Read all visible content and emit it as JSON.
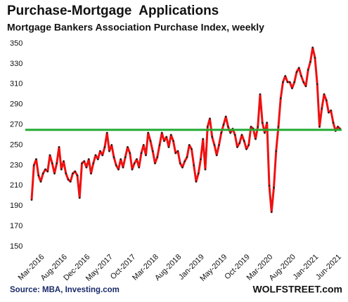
{
  "chart_data": {
    "type": "line",
    "title": "Purchase-Mortgage  Applications",
    "subtitle": "Mortgage Bankers Association Purchase Index, weekly",
    "source": "Source: MBA, Investing.com",
    "brand": "WOLFSTREET.com",
    "categories": [
      null,
      null,
      null,
      null,
      null,
      "Mar-2016",
      null,
      null,
      null,
      null,
      null,
      null,
      null,
      null,
      null,
      "Aug-2016",
      null,
      null,
      null,
      null,
      null,
      null,
      null,
      null,
      null,
      "Dec-2016",
      null,
      null,
      null,
      null,
      null,
      null,
      null,
      null,
      null,
      "May-2017",
      null,
      null,
      null,
      null,
      null,
      null,
      null,
      null,
      null,
      "Oct-2017",
      null,
      null,
      null,
      null,
      null,
      null,
      null,
      null,
      null,
      "Mar-2018",
      null,
      null,
      null,
      null,
      null,
      null,
      null,
      null,
      null,
      "Aug-2018",
      null,
      null,
      null,
      null,
      null,
      null,
      null,
      null,
      null,
      "Jan-2019",
      null,
      null,
      null,
      null,
      null,
      null,
      null,
      null,
      null,
      "May-2019",
      null,
      null,
      null,
      null,
      null,
      null,
      null,
      null,
      null,
      "Oct-2019",
      null,
      null,
      null,
      null,
      null,
      null,
      null,
      null,
      null,
      "Mar-2020",
      null,
      null,
      null,
      null,
      null,
      null,
      null,
      null,
      null,
      "Aug-2020",
      null,
      null,
      null,
      null,
      null,
      null,
      null,
      null,
      null,
      "Jan-2021",
      null,
      null,
      null,
      null,
      null,
      null,
      null,
      null,
      null,
      "Jun-2021"
    ],
    "values": [
      196,
      230,
      236,
      220,
      214,
      222,
      226,
      224,
      240,
      232,
      222,
      232,
      248,
      226,
      234,
      222,
      216,
      214,
      222,
      224,
      220,
      198,
      232,
      234,
      228,
      236,
      222,
      232,
      240,
      236,
      244,
      240,
      248,
      262,
      244,
      250,
      238,
      230,
      226,
      236,
      228,
      238,
      248,
      242,
      226,
      232,
      236,
      228,
      242,
      250,
      240,
      262,
      254,
      244,
      232,
      238,
      250,
      262,
      254,
      258,
      248,
      260,
      254,
      242,
      244,
      232,
      228,
      234,
      238,
      250,
      246,
      230,
      214,
      222,
      236,
      256,
      226,
      268,
      276,
      258,
      250,
      240,
      250,
      262,
      270,
      278,
      268,
      262,
      266,
      260,
      248,
      252,
      260,
      254,
      246,
      250,
      268,
      266,
      256,
      268,
      300,
      272,
      262,
      272,
      210,
      184,
      208,
      244,
      268,
      296,
      312,
      318,
      312,
      312,
      306,
      312,
      322,
      326,
      318,
      312,
      308,
      324,
      332,
      346,
      336,
      310,
      268,
      286,
      300,
      294,
      282,
      284,
      272,
      264,
      268,
      266
    ],
    "color": "#ee1111",
    "marker_color": "#222222",
    "hline": 265,
    "hline_color": "#22aa33",
    "ylim": [
      145,
      355
    ],
    "yticks": [
      150,
      170,
      190,
      210,
      230,
      250,
      270,
      290,
      310,
      330,
      350
    ]
  }
}
